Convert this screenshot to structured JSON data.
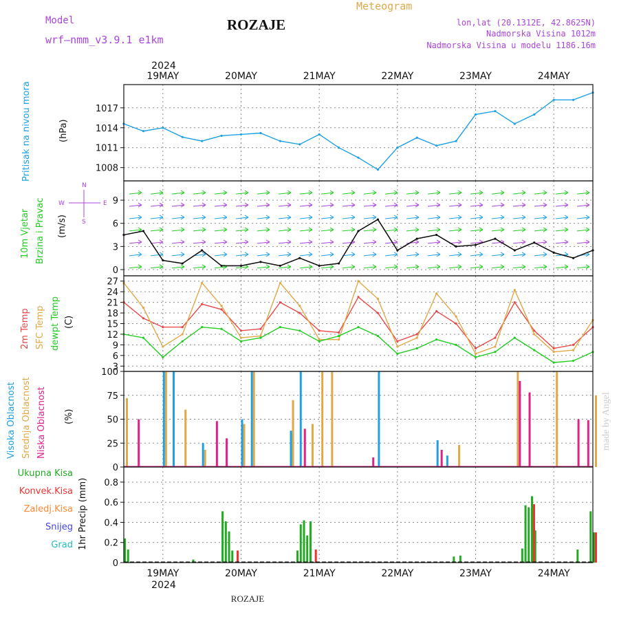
{
  "header": {
    "model_label": "Model",
    "model_name": "wrf–nmm_v3.9.1  e1km",
    "title": "ROZAJE",
    "meteogram": "Meteogram",
    "lonlat": "lon,lat (20.1312E, 42.8625N)",
    "elev": "Nadmorska Visina 1012m",
    "elev_model": "Nadmorska Visina u modelu 1186.16m",
    "footer": "ROZAJE",
    "watermark": "made by Angel"
  },
  "colors": {
    "pressure": "#1ea0e6",
    "wind_label": "#22cc22",
    "temp2m": "#e84848",
    "tempsfc": "#e0a848",
    "dewpt": "#22cc22",
    "cloud_high": "#1ea0e6",
    "cloud_mid": "#e0a848",
    "cloud_low": "#dd2288",
    "precip_total": "#22aa22",
    "precip_conv": "#ee3333",
    "precip_frozen": "#ff8833",
    "snow": "#4444ee",
    "grad": "#22bbbb",
    "purple": "#aa44dd"
  },
  "chart_data": {
    "type": "line",
    "year": "2024",
    "days": [
      "19MAY",
      "20MAY",
      "21MAY",
      "22MAY",
      "23MAY",
      "24MAY"
    ],
    "time_axis": {
      "start": "2024-05-18T12:00",
      "end": "2024-05-24T12:00"
    },
    "panels": [
      {
        "id": "pressure",
        "ylabel": "(hPa)",
        "side_labels": [
          "Pritisak na nivou mora"
        ],
        "yticks": [
          1008,
          1011,
          1014,
          1017
        ],
        "ylim": [
          1006,
          1020.5
        ],
        "series": [
          {
            "x": [
              "2024-05-18T12:00",
              "2024-05-18T18:00",
              "2024-05-19T00:00",
              "2024-05-19T06:00",
              "2024-05-19T12:00",
              "2024-05-19T18:00",
              "2024-05-20T00:00",
              "2024-05-20T06:00",
              "2024-05-20T12:00",
              "2024-05-20T18:00",
              "2024-05-21T00:00",
              "2024-05-21T06:00",
              "2024-05-21T12:00",
              "2024-05-21T18:00",
              "2024-05-22T00:00",
              "2024-05-22T06:00",
              "2024-05-22T12:00",
              "2024-05-22T18:00",
              "2024-05-23T00:00",
              "2024-05-23T06:00",
              "2024-05-23T12:00",
              "2024-05-23T18:00",
              "2024-05-24T00:00",
              "2024-05-24T06:00",
              "2024-05-24T12:00"
            ],
            "values": [
              1014.6,
              1013.5,
              1014.0,
              1012.6,
              1012.0,
              1012.8,
              1013.0,
              1013.2,
              1012.0,
              1011.5,
              1013.0,
              1011.0,
              1009.5,
              1007.7,
              1011.0,
              1012.5,
              1011.3,
              1012.0,
              1016.0,
              1016.5,
              1014.6,
              1016.0,
              1018.2,
              1018.2,
              1019.3
            ]
          }
        ]
      },
      {
        "id": "wind",
        "ylabel": "(m/s)",
        "side_labels": [
          "10m Vjetar",
          "Brzina i Pravac"
        ],
        "compass": [
          "N",
          "W",
          "E",
          "S"
        ],
        "yticks": [
          0,
          3,
          6,
          9
        ],
        "ylim": [
          -0.8,
          11.5
        ],
        "series": [
          {
            "name": "wind speed",
            "x": [
              "2024-05-18T12:00",
              "2024-05-18T18:00",
              "2024-05-19T00:00",
              "2024-05-19T06:00",
              "2024-05-19T12:00",
              "2024-05-19T18:00",
              "2024-05-20T00:00",
              "2024-05-20T06:00",
              "2024-05-20T12:00",
              "2024-05-20T18:00",
              "2024-05-21T00:00",
              "2024-05-21T06:00",
              "2024-05-21T12:00",
              "2024-05-21T18:00",
              "2024-05-22T00:00",
              "2024-05-22T06:00",
              "2024-05-22T12:00",
              "2024-05-22T18:00",
              "2024-05-23T00:00",
              "2024-05-23T06:00",
              "2024-05-23T12:00",
              "2024-05-23T18:00",
              "2024-05-24T00:00",
              "2024-05-24T06:00",
              "2024-05-24T12:00"
            ],
            "values": [
              4.5,
              5.0,
              1.2,
              0.8,
              2.5,
              0.5,
              0.5,
              1.0,
              0.5,
              1.5,
              0.5,
              0.8,
              5.0,
              6.5,
              2.5,
              4.0,
              4.5,
              3.0,
              3.2,
              4.0,
              2.5,
              3.5,
              2.2,
              1.5,
              2.5
            ]
          }
        ]
      },
      {
        "id": "temp",
        "ylabel": "(C)",
        "side_labels": [
          "2m Temp",
          "SFC Temp",
          "dewpt Temp"
        ],
        "yticks": [
          3,
          6,
          9,
          12,
          15,
          18,
          21,
          24,
          27
        ],
        "ylim": [
          1.5,
          28.5
        ],
        "series": [
          {
            "name": "2m Temp",
            "x": [
              "2024-05-18T12:00",
              "2024-05-18T18:00",
              "2024-05-19T00:00",
              "2024-05-19T06:00",
              "2024-05-19T12:00",
              "2024-05-19T18:00",
              "2024-05-20T00:00",
              "2024-05-20T06:00",
              "2024-05-20T12:00",
              "2024-05-20T18:00",
              "2024-05-21T00:00",
              "2024-05-21T06:00",
              "2024-05-21T12:00",
              "2024-05-21T18:00",
              "2024-05-22T00:00",
              "2024-05-22T06:00",
              "2024-05-22T12:00",
              "2024-05-22T18:00",
              "2024-05-23T00:00",
              "2024-05-23T06:00",
              "2024-05-23T12:00",
              "2024-05-23T18:00",
              "2024-05-24T00:00",
              "2024-05-24T06:00",
              "2024-05-24T12:00"
            ],
            "values": [
              21.0,
              16.5,
              14.0,
              14.0,
              20.5,
              19.0,
              13.0,
              13.5,
              21.0,
              18.0,
              13.0,
              12.5,
              22.5,
              18.0,
              10.0,
              12.0,
              18.5,
              15.0,
              8.0,
              11.0,
              21.0,
              13.0,
              8.0,
              9.0,
              14.0
            ]
          },
          {
            "name": "SFC Temp",
            "x": [
              "2024-05-18T12:00",
              "2024-05-18T18:00",
              "2024-05-19T00:00",
              "2024-05-19T06:00",
              "2024-05-19T12:00",
              "2024-05-19T18:00",
              "2024-05-20T00:00",
              "2024-05-20T06:00",
              "2024-05-20T12:00",
              "2024-05-20T18:00",
              "2024-05-21T00:00",
              "2024-05-21T06:00",
              "2024-05-21T12:00",
              "2024-05-21T18:00",
              "2024-05-22T00:00",
              "2024-05-22T06:00",
              "2024-05-22T12:00",
              "2024-05-22T18:00",
              "2024-05-23T00:00",
              "2024-05-23T06:00",
              "2024-05-23T12:00",
              "2024-05-23T18:00",
              "2024-05-24T00:00",
              "2024-05-24T06:00",
              "2024-05-24T12:00"
            ],
            "values": [
              26.5,
              19.5,
              8.5,
              12.0,
              26.5,
              20.0,
              11.0,
              11.5,
              26.5,
              20.0,
              10.5,
              10.5,
              27.0,
              22.0,
              8.5,
              11.0,
              23.5,
              17.0,
              6.5,
              8.5,
              24.5,
              12.0,
              7.0,
              7.5,
              16.0
            ]
          },
          {
            "name": "dewpt Temp",
            "x": [
              "2024-05-18T12:00",
              "2024-05-18T18:00",
              "2024-05-19T00:00",
              "2024-05-19T06:00",
              "2024-05-19T12:00",
              "2024-05-19T18:00",
              "2024-05-20T00:00",
              "2024-05-20T06:00",
              "2024-05-20T12:00",
              "2024-05-20T18:00",
              "2024-05-21T00:00",
              "2024-05-21T06:00",
              "2024-05-21T12:00",
              "2024-05-21T18:00",
              "2024-05-22T00:00",
              "2024-05-22T06:00",
              "2024-05-22T12:00",
              "2024-05-22T18:00",
              "2024-05-23T00:00",
              "2024-05-23T06:00",
              "2024-05-23T12:00",
              "2024-05-23T18:00",
              "2024-05-24T00:00",
              "2024-05-24T06:00",
              "2024-05-24T12:00"
            ],
            "values": [
              12.0,
              11.0,
              5.5,
              10.0,
              14.0,
              13.5,
              10.0,
              11.0,
              14.0,
              13.0,
              10.0,
              11.5,
              14.0,
              11.5,
              6.5,
              8.0,
              10.5,
              9.0,
              5.5,
              7.0,
              11.0,
              7.5,
              4.0,
              4.5,
              7.0
            ]
          }
        ]
      },
      {
        "id": "cloud",
        "ylabel": "(%)",
        "side_labels": [
          "Visoka Oblacnost",
          "Srednja Oblacnost",
          "Niska Oblacnost"
        ],
        "yticks": [
          0,
          25,
          50,
          75,
          100
        ],
        "ylim": [
          0,
          100
        ],
        "series": [
          {
            "name": "Visoka Oblacnost",
            "x": [
              "2024-05-19T00:00",
              "2024-05-19T03:00",
              "2024-05-19T12:00",
              "2024-05-20T00:00",
              "2024-05-20T03:00",
              "2024-05-20T15:00",
              "2024-05-20T18:00",
              "2024-05-21T09:00",
              "2024-05-21T18:00",
              "2024-05-22T12:00",
              "2024-05-22T15:00",
              "2024-05-23T18:00",
              "2024-05-24T09:00"
            ],
            "values": [
              100,
              100,
              25,
              50,
              100,
              38,
              100,
              0,
              100,
              28,
              12,
              0,
              0
            ]
          },
          {
            "name": "Srednja Oblacnost",
            "x": [
              "2024-05-18T12:00",
              "2024-05-19T00:00",
              "2024-05-19T06:00",
              "2024-05-19T12:00",
              "2024-05-20T00:00",
              "2024-05-20T03:00",
              "2024-05-20T15:00",
              "2024-05-20T21:00",
              "2024-05-21T00:00",
              "2024-05-21T03:00",
              "2024-05-22T18:00",
              "2024-05-23T12:00",
              "2024-05-24T00:00",
              "2024-05-24T12:00"
            ],
            "values": [
              72,
              100,
              60,
              18,
              45,
              100,
              70,
              45,
              100,
              100,
              23,
              100,
              100,
              75
            ]
          },
          {
            "name": "Niska Oblacnost",
            "x": [
              "2024-05-18T15:00",
              "2024-05-19T15:00",
              "2024-05-19T18:00",
              "2024-05-20T18:00",
              "2024-05-21T15:00",
              "2024-05-22T12:00",
              "2024-05-23T12:00",
              "2024-05-23T15:00",
              "2024-05-24T06:00",
              "2024-05-24T09:00"
            ],
            "values": [
              50,
              48,
              30,
              40,
              10,
              18,
              90,
              78,
              50,
              49
            ]
          }
        ]
      },
      {
        "id": "precip",
        "ylabel": "1hr Precip (mm)",
        "side_labels": [
          "Ukupna Kisa",
          "Konvek.Kisa",
          "Zaledj.Kisa",
          "Snijeg",
          "Grad"
        ],
        "yticks": [
          0,
          0.2,
          0.4,
          0.6,
          0.8
        ],
        "ylim": [
          0,
          0.95
        ],
        "series": [
          {
            "name": "Ukupna Kisa",
            "x": [
              "2024-05-18T12:00",
              "2024-05-18T13:00",
              "2024-05-19T09:00",
              "2024-05-19T18:00",
              "2024-05-19T19:00",
              "2024-05-19T20:00",
              "2024-05-19T21:00",
              "2024-05-20T17:00",
              "2024-05-20T18:00",
              "2024-05-20T19:00",
              "2024-05-20T20:00",
              "2024-05-20T21:00",
              "2024-05-22T17:00",
              "2024-05-22T19:00",
              "2024-05-23T14:00",
              "2024-05-23T15:00",
              "2024-05-23T16:00",
              "2024-05-23T17:00",
              "2024-05-23T18:00",
              "2024-05-24T07:00",
              "2024-05-24T11:00",
              "2024-05-24T12:00"
            ],
            "values": [
              0.24,
              0.13,
              0.03,
              0.51,
              0.41,
              0.31,
              0.12,
              0.12,
              0.38,
              0.42,
              0.27,
              0.41,
              0.06,
              0.07,
              0.14,
              0.57,
              0.55,
              0.66,
              0.32,
              0.13,
              0.51,
              0.3
            ]
          },
          {
            "name": "Konvek.Kisa",
            "x": [
              "2024-05-19T22:00",
              "2024-05-20T22:00",
              "2024-05-23T17:00",
              "2024-05-24T12:00"
            ],
            "values": [
              0.12,
              0.13,
              0.58,
              0.3
            ]
          }
        ]
      }
    ]
  }
}
